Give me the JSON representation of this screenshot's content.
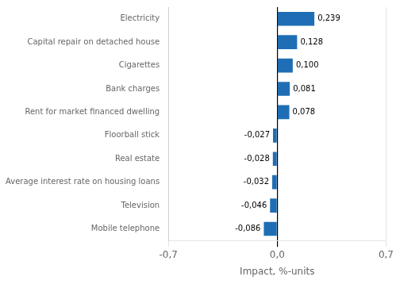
{
  "chart_data": {
    "type": "bar",
    "orientation": "horizontal",
    "categories": [
      "Mobile telephone",
      "Television",
      "Average interest rate on housing loans",
      "Real estate",
      "Floorball stick",
      "Rent for market financed dwelling",
      "Bank charges",
      "Cigarettes",
      "Capital repair on detached house",
      "Electricity"
    ],
    "values": [
      -0.086,
      -0.046,
      -0.032,
      -0.028,
      -0.027,
      0.078,
      0.081,
      0.1,
      0.128,
      0.239
    ],
    "value_labels": [
      "-0,086",
      "-0,046",
      "-0,032",
      "-0,028",
      "-0,027",
      "0,078",
      "0,081",
      "0,100",
      "0,128",
      "0,239"
    ],
    "data_labels": true,
    "color": "#1f6eb5",
    "xlabel": "Impact, %-units",
    "xlim": [
      -0.7,
      0.7
    ],
    "xticks": [
      {
        "value": -0.7,
        "label": "-0,7"
      },
      {
        "value": 0,
        "label": "0,0"
      },
      {
        "value": 0.7,
        "label": "0,7"
      }
    ],
    "grid": true
  }
}
